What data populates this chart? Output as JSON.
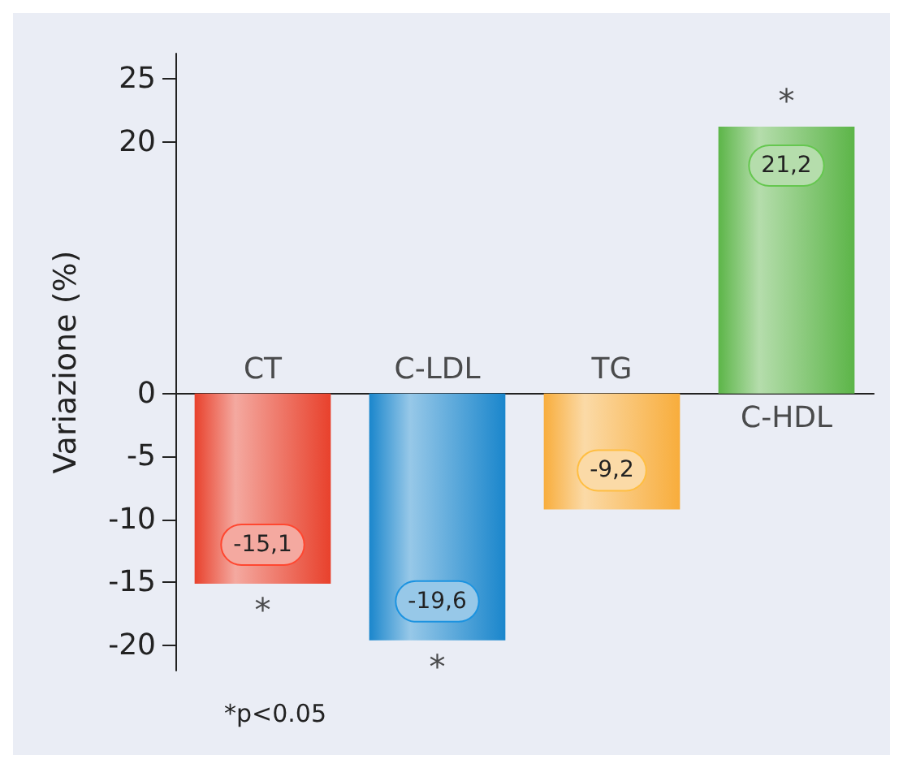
{
  "chart_data": {
    "type": "bar",
    "ylabel": "Variazione (%)",
    "categories": [
      "CT",
      "C-LDL",
      "TG",
      "C-HDL"
    ],
    "values": [
      -15.1,
      -19.6,
      -9.2,
      21.2
    ],
    "colors": [
      "#e8412c",
      "#1a86cc",
      "#f8ad3c",
      "#5cb548"
    ],
    "value_labels": [
      "-15,1",
      "-19,6",
      "-9,2",
      "21,2"
    ],
    "ylim": [
      -22,
      27
    ],
    "yticks": [
      -20,
      -15,
      -10,
      -5,
      0,
      20,
      25
    ],
    "grid": false,
    "annotations": [
      {
        "text": "*",
        "x": "CT",
        "y": -15.1
      },
      {
        "text": "*",
        "x": "C-LDL",
        "y": -19.6
      },
      {
        "text": "*",
        "x": "C-HDL",
        "y": 21.2
      },
      "*p<0.05"
    ]
  }
}
